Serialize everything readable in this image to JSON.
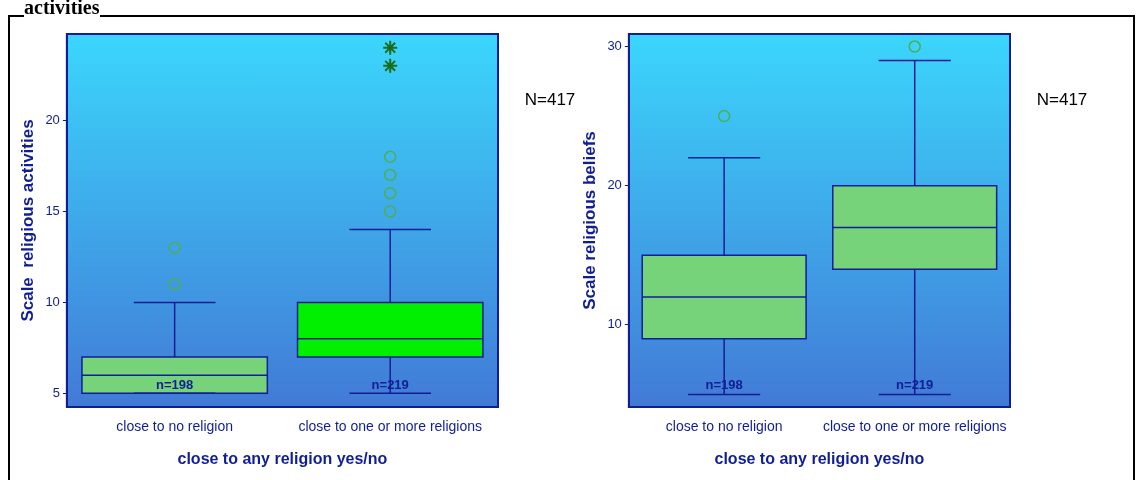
{
  "chart_data": [
    {
      "type": "box",
      "title": "activities",
      "xlabel": "close to any religion yes/no",
      "ylabel": "Scale  religious activities",
      "categories": [
        "close to no religion",
        "close to one or more religions"
      ],
      "ylim": [
        4.25,
        24.75
      ],
      "yticks": [
        5,
        10,
        15,
        20
      ],
      "grid": false,
      "legend": false,
      "series": [
        {
          "colors": [
            "#77d379",
            "#00f000"
          ],
          "boxes": [
            {
              "low": 5,
              "q1": 5,
              "median": 6,
              "q3": 7,
              "high": 10,
              "outliers": [
                11,
                13
              ]
            },
            {
              "low": 5,
              "q1": 7,
              "median": 8,
              "q3": 10,
              "high": 14,
              "outliers": [
                15,
                16,
                17,
                18
              ]
            }
          ]
        },
        {
          "type": "scatter",
          "color": "#1a6b1a",
          "marker": "cross",
          "x": [
            "close to one or more religions",
            "close to one or more religions"
          ],
          "values": [
            23,
            24
          ]
        }
      ],
      "annotations": [
        "N=417",
        "n=198",
        "n=219"
      ]
    },
    {
      "type": "box",
      "xlabel": "close to any religion yes/no",
      "ylabel": "Scale religious beliefs",
      "categories": [
        "close to no religion",
        "close to one or more religions"
      ],
      "ylim": [
        4.1,
        30.9
      ],
      "yticks": [
        10,
        20,
        30
      ],
      "grid": false,
      "legend": false,
      "series": [
        {
          "colors": [
            "#77d379",
            "#77d379"
          ],
          "boxes": [
            {
              "low": 5,
              "q1": 9,
              "median": 12,
              "q3": 15,
              "high": 22,
              "outliers": [
                25
              ]
            },
            {
              "low": 5,
              "q1": 14,
              "median": 17,
              "q3": 20,
              "high": 29,
              "outliers": [
                30
              ]
            }
          ]
        }
      ],
      "annotations": [
        "N=417",
        "n=198",
        "n=219"
      ]
    }
  ]
}
